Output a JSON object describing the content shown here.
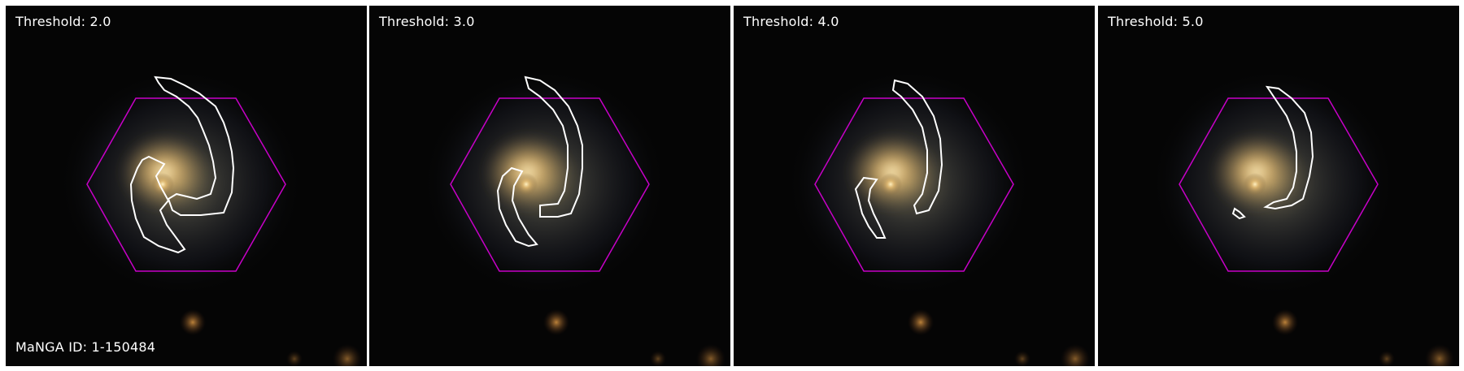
{
  "figure": {
    "manga_id_text": "MaNGA ID: 1-150484",
    "colors": {
      "hexagon": "#c800c8",
      "contour": "#ffffff",
      "background": "#050505",
      "galaxy_core": "#f0c878"
    },
    "panels": [
      {
        "threshold_label": "Threshold: 2.0"
      },
      {
        "threshold_label": "Threshold: 3.0"
      },
      {
        "threshold_label": "Threshold: 4.0"
      },
      {
        "threshold_label": "Threshold: 5.0"
      }
    ]
  }
}
